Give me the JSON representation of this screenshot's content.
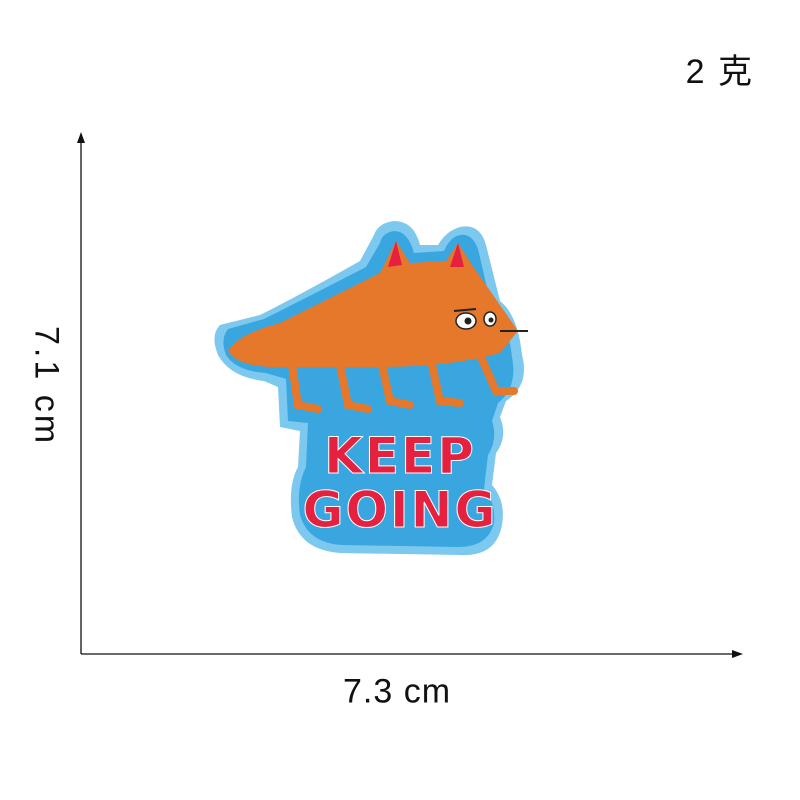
{
  "weight_label": "2 克",
  "height_label": "7.1 cm",
  "width_label": "7.3 cm",
  "patch": {
    "line1": "KEEP",
    "line2": "GOING",
    "felt_color": "#3aa6e0",
    "border_color": "#7cc8ef",
    "fox_color": "#e5782a",
    "text_color": "#e5213f"
  }
}
